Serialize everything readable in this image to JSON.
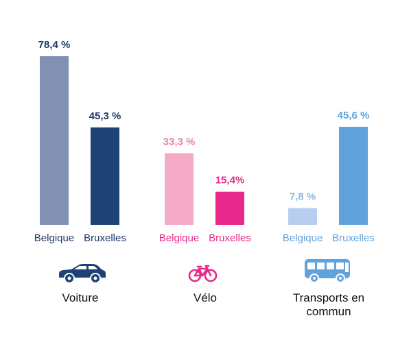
{
  "chart_data": {
    "type": "bar",
    "ylim": [
      0,
      80
    ],
    "groups": [
      {
        "label": "Voiture",
        "icon": "car-icon",
        "bars": [
          {
            "category": "Belgique",
            "value": 78.4,
            "label": "78,4 %",
            "color": "#8190b3"
          },
          {
            "category": "Bruxelles",
            "value": 45.3,
            "label": "45,3 %",
            "color": "#1e4273"
          }
        ],
        "text_color": "#1e3a66"
      },
      {
        "label": "Vélo",
        "icon": "bicycle-icon",
        "bars": [
          {
            "category": "Belgique",
            "value": 33.3,
            "label": "33,3 %",
            "color": "#f4a9c6"
          },
          {
            "category": "Bruxelles",
            "value": 15.4,
            "label": "15,4%",
            "color": "#e8288a"
          }
        ],
        "text_color": "#e8288a"
      },
      {
        "label": "Transports en commun",
        "label_lines": [
          "Transports en",
          "commun"
        ],
        "icon": "bus-icon",
        "bars": [
          {
            "category": "Belgique",
            "value": 7.8,
            "label": "7,8 %",
            "color": "#b7cfee"
          },
          {
            "category": "Bruxelles",
            "value": 45.6,
            "label": "45,6 %",
            "color": "#5fa2dc"
          }
        ],
        "text_color": "#5fa2dc"
      }
    ]
  }
}
